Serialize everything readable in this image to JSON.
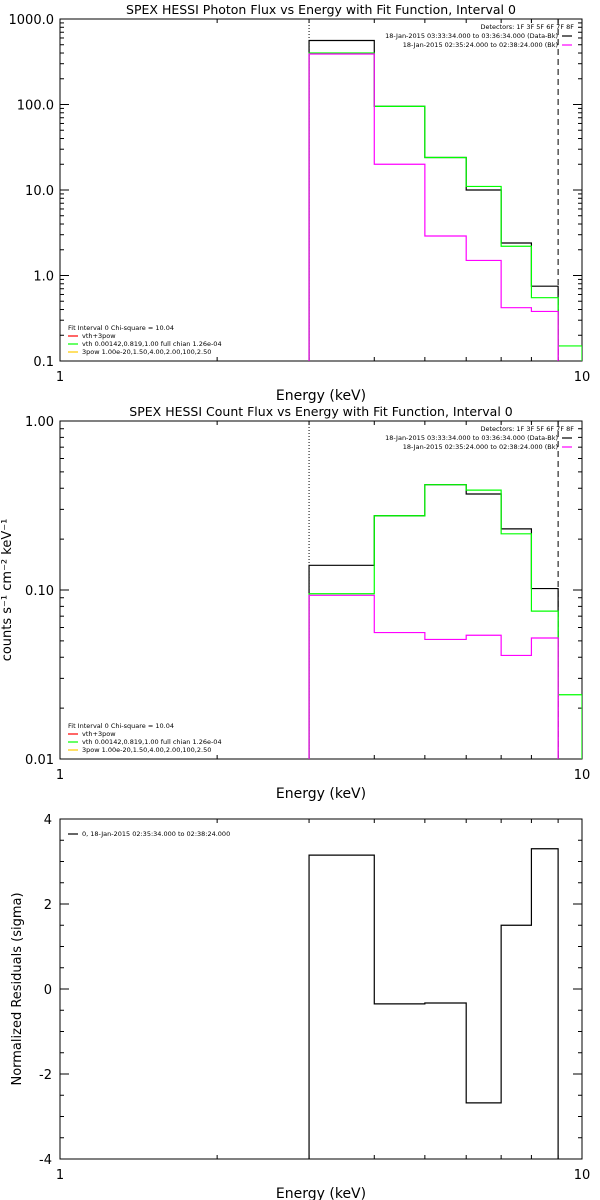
{
  "chart_data": [
    {
      "type": "line",
      "title": "SPEX HESSI Photon Flux vs Energy with Fit Function, Interval 0",
      "xlabel": "Energy (keV)",
      "ylabel": "",
      "xscale": "log",
      "yscale": "log",
      "xlim": [
        1,
        10
      ],
      "ylim": [
        0.1,
        1000
      ],
      "x_ticks": [
        "1",
        "10"
      ],
      "y_ticks": [
        "0.1",
        "1.0",
        "10.0",
        "100.0",
        "1000.0"
      ],
      "detectors": "Detectors: 1F 3F 5F 6F 7F 8F",
      "legend_right": [
        {
          "text": "18-Jan-2015 03:33:34.000 to 03:36:34.000 (Data-Bk)",
          "color": "#000000"
        },
        {
          "text": "18-Jan-2015 02:35:24.000 to 02:38:24.000 (Bk)",
          "color": "#ff00ff"
        }
      ],
      "legend_left": [
        {
          "text": "Fit Interval 0   Chi-square = 10.04",
          "color": ""
        },
        {
          "text": "vth+3pow",
          "color": "#ff0000"
        },
        {
          "text": "vth 0.00142,0.819,1.00  full chian 1.26e-04",
          "color": "#00ff00"
        },
        {
          "text": "3pow 1.00e-20,1.50,4.00,2.00,100,2.50",
          "color": "#ffcc00"
        }
      ],
      "dotted_line_x": 3.0,
      "dashed_line_x": 9.0,
      "bin_edges": [
        3.0,
        4.0,
        5.0,
        6.0,
        7.0,
        8.0,
        9.0,
        10.0
      ],
      "series": [
        {
          "name": "Data-Bk",
          "color": "#000000",
          "values": [
            560,
            95,
            24,
            10,
            2.4,
            0.75,
            null
          ]
        },
        {
          "name": "vth+3pow",
          "color": "#00ff00",
          "values": [
            400,
            95,
            24,
            11,
            2.2,
            0.55,
            0.15
          ]
        },
        {
          "name": "Bk",
          "color": "#ff00ff",
          "values": [
            390,
            20,
            2.9,
            1.5,
            0.42,
            0.38,
            null
          ]
        }
      ]
    },
    {
      "type": "line",
      "title": "SPEX HESSI Count Flux vs Energy with Fit Function, Interval 0",
      "xlabel": "Energy (keV)",
      "ylabel": "counts s⁻¹ cm⁻² keV⁻¹",
      "xscale": "log",
      "yscale": "log",
      "xlim": [
        1,
        10
      ],
      "ylim": [
        0.01,
        1.0
      ],
      "x_ticks": [
        "1",
        "10"
      ],
      "y_ticks": [
        "0.01",
        "0.10",
        "1.00"
      ],
      "detectors": "Detectors: 1F 3F 5F 6F 7F 8F",
      "legend_right": [
        {
          "text": "18-Jan-2015 03:33:34.000 to 03:36:34.000 (Data-Bk)",
          "color": "#000000"
        },
        {
          "text": "18-Jan-2015 02:35:24.000 to 02:38:24.000 (Bk)",
          "color": "#ff00ff"
        }
      ],
      "legend_left": [
        {
          "text": "Fit Interval 0   Chi-square = 10.04",
          "color": ""
        },
        {
          "text": "vth+3pow",
          "color": "#ff0000"
        },
        {
          "text": "vth 0.00142,0.819,1.00  full chian 1.26e-04",
          "color": "#00ff00"
        },
        {
          "text": "3pow 1.00e-20,1.50,4.00,2.00,100,2.50",
          "color": "#ffcc00"
        }
      ],
      "dotted_line_x": 3.0,
      "dashed_line_x": 9.0,
      "bin_edges": [
        3.0,
        4.0,
        5.0,
        6.0,
        7.0,
        8.0,
        9.0,
        10.0
      ],
      "series": [
        {
          "name": "Data-Bk",
          "color": "#000000",
          "values": [
            0.14,
            0.275,
            0.42,
            0.37,
            0.23,
            0.102,
            null
          ]
        },
        {
          "name": "vth+3pow",
          "color": "#00ff00",
          "values": [
            0.095,
            0.275,
            0.42,
            0.39,
            0.215,
            0.075,
            0.024
          ]
        },
        {
          "name": "Bk",
          "color": "#ff00ff",
          "values": [
            0.093,
            0.056,
            0.051,
            0.054,
            0.041,
            0.052,
            null
          ]
        }
      ]
    },
    {
      "type": "line",
      "title": "",
      "xlabel": "Energy (keV)",
      "ylabel": "Normalized Residuals (sigma)",
      "xscale": "log",
      "yscale": "linear",
      "xlim": [
        1,
        10
      ],
      "ylim": [
        -4,
        4
      ],
      "x_ticks": [
        "1",
        "10"
      ],
      "y_ticks": [
        "-4",
        "-2",
        "0",
        "2",
        "4"
      ],
      "legend_left": [
        {
          "text": "0, 18-Jan-2015 02:35:34.000 to 02:38:24.000",
          "color": "#000000"
        }
      ],
      "bin_edges": [
        3.0,
        4.0,
        5.0,
        6.0,
        7.0,
        8.0,
        9.0
      ],
      "series": [
        {
          "name": "",
          "color": "#000000",
          "values": [
            3.15,
            -0.35,
            -0.33,
            -2.68,
            1.5,
            3.3
          ]
        }
      ]
    }
  ]
}
